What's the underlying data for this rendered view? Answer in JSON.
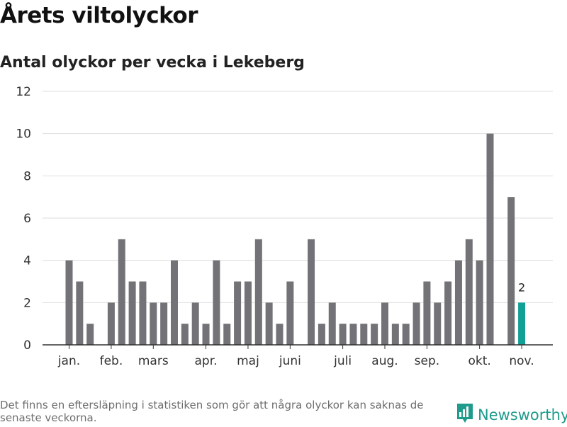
{
  "header": {
    "title": "Årets viltolyckor",
    "subtitle": "Antal olyckor per vecka i Lekeberg"
  },
  "footer": {
    "note": "Det finns en eftersläpning i statistiken som gör att några olyckor kan saknas de senaste veckorna.",
    "brand": "Newsworthy"
  },
  "colors": {
    "bar": "#737277",
    "highlight": "#11a095",
    "grid": "#dedede",
    "axis": "#333333",
    "brand": "#1e9b8c"
  },
  "icons": {
    "brand_logo": "newsworthy-chart-icon"
  },
  "chart_data": {
    "type": "bar",
    "x_unit": "week",
    "weeks": [
      1,
      2,
      3,
      4,
      5,
      6,
      7,
      8,
      9,
      10,
      11,
      12,
      13,
      14,
      15,
      16,
      17,
      18,
      19,
      20,
      21,
      22,
      23,
      24,
      25,
      26,
      27,
      28,
      29,
      30,
      31,
      32,
      33,
      34,
      35,
      36,
      37,
      38,
      39,
      40,
      41,
      42,
      43,
      44,
      45
    ],
    "values": [
      4,
      3,
      1,
      null,
      2,
      5,
      3,
      3,
      2,
      2,
      4,
      1,
      2,
      1,
      4,
      1,
      3,
      3,
      5,
      2,
      1,
      3,
      null,
      5,
      1,
      2,
      1,
      1,
      1,
      1,
      2,
      1,
      1,
      2,
      3,
      2,
      3,
      4,
      5,
      4,
      10,
      null,
      7,
      2,
      null
    ],
    "highlight_week": 44,
    "data_labels": [
      {
        "week": 44,
        "text": "2"
      }
    ],
    "month_ticks": [
      {
        "label": "jan.",
        "week": 1
      },
      {
        "label": "feb.",
        "week": 5
      },
      {
        "label": "mars",
        "week": 9
      },
      {
        "label": "apr.",
        "week": 14
      },
      {
        "label": "maj",
        "week": 18
      },
      {
        "label": "juni",
        "week": 22
      },
      {
        "label": "juli",
        "week": 27
      },
      {
        "label": "aug.",
        "week": 31
      },
      {
        "label": "sep.",
        "week": 35
      },
      {
        "label": "okt.",
        "week": 40
      },
      {
        "label": "nov.",
        "week": 44
      }
    ],
    "y_ticks": [
      0,
      2,
      4,
      6,
      8,
      10,
      12
    ],
    "ylim": [
      0,
      12
    ],
    "grid": true,
    "legend": "none"
  }
}
